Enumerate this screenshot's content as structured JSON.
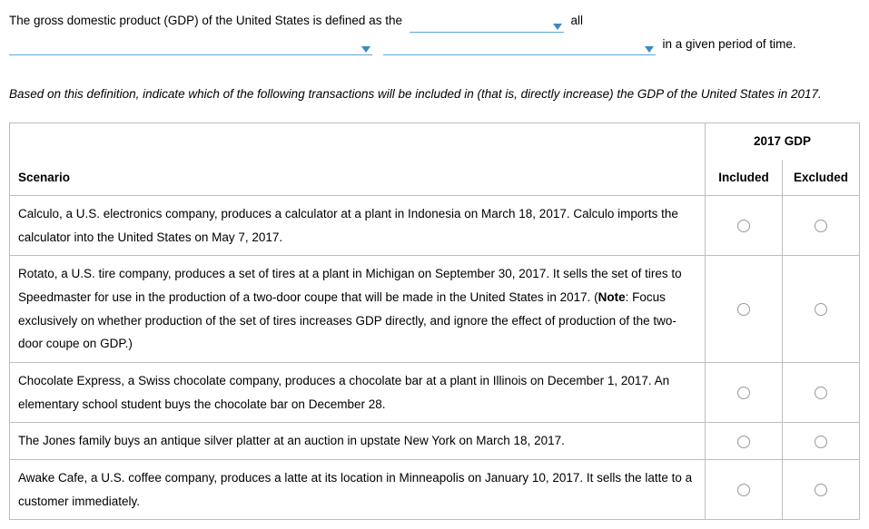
{
  "intro": {
    "seg1": "The gross domestic product (GDP) of the United States is defined as the",
    "seg2": "all",
    "seg3": "in a given period of time.",
    "dropdown_widths": [
      170,
      400,
      300
    ],
    "dropdown_color": "#5ba8d6",
    "caret_color": "#3b8bbd"
  },
  "instructions": "Based on this definition, indicate which of the following transactions will be included in (that is, directly increase) the GDP of the United States in 2017.",
  "table": {
    "scenario_header": "Scenario",
    "group_header": "2017 GDP",
    "col_included": "Included",
    "col_excluded": "Excluded",
    "rows": [
      {
        "text": "Calculo, a U.S. electronics company, produces a calculator at a plant in Indonesia on March 18, 2017. Calculo imports the calculator into the United States on May 7, 2017."
      },
      {
        "text_pre": "Rotato, a U.S. tire company, produces a set of tires at a plant in Michigan on September 30, 2017. It sells the set of tires to Speedmaster for use in the production of a two-door coupe that will be made in the United States in 2017. (",
        "note_label": "Note",
        "text_post": ": Focus exclusively on whether production of the set of tires increases GDP directly, and ignore the effect of production of the two-door coupe on GDP.)"
      },
      {
        "text": "Chocolate Express, a Swiss chocolate company, produces a chocolate bar at a plant in Illinois on December 1, 2017. An elementary school student buys the chocolate bar on December 28."
      },
      {
        "text": "The Jones family buys an antique silver platter at an auction in upstate New York on March 18, 2017."
      },
      {
        "text": "Awake Cafe, a U.S. coffee company, produces a latte at its location in Minneapolis on January 10, 2017. It sells the latte to a customer immediately."
      }
    ]
  }
}
